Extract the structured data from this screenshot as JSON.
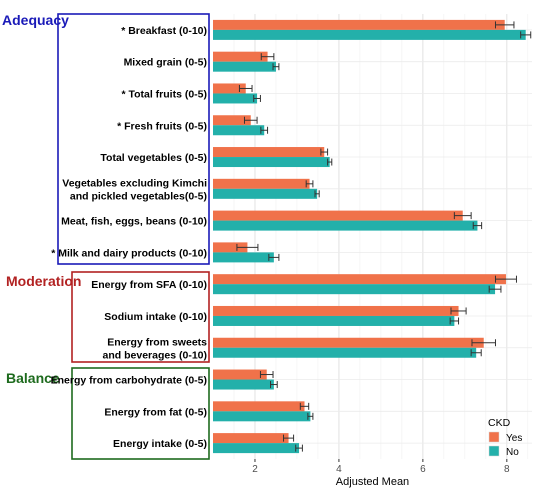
{
  "chart_data": {
    "type": "bar",
    "orientation": "horizontal",
    "xlabel": "Adjusted Mean",
    "xlim": [
      1.0,
      8.6
    ],
    "xticks": [
      2,
      4,
      6,
      8
    ],
    "grid": true,
    "legend": {
      "title": "CKD",
      "placement": "bottom-right"
    },
    "categories": [
      "* Breakfast (0-10)",
      "Mixed grain (0-5)",
      "* Total fruits (0-5)",
      "* Fresh fruits (0-5)",
      "Total vegetables (0-5)",
      [
        "Vegetables excluding Kimchi",
        "and pickled vegetables(0-5)"
      ],
      "Meat, fish, eggs, beans (0-10)",
      "* Milk and dairy products (0-10)",
      "Energy from SFA (0-10)",
      "Sodium intake (0-10)",
      [
        "Energy from sweets",
        "and beverages (0-10)"
      ],
      "Energy from carbohydrate (0-5)",
      "Energy from fat (0-5)",
      "Energy intake (0-5)"
    ],
    "series": [
      {
        "name": "Yes",
        "color": "#F0724A",
        "values": [
          7.95,
          2.3,
          1.78,
          1.9,
          3.65,
          3.3,
          6.95,
          1.82,
          7.98,
          6.85,
          7.45,
          2.28,
          3.18,
          2.8
        ],
        "errors": [
          0.22,
          0.15,
          0.15,
          0.15,
          0.08,
          0.08,
          0.2,
          0.25,
          0.25,
          0.18,
          0.28,
          0.15,
          0.1,
          0.12
        ]
      },
      {
        "name": "No",
        "color": "#23B0AA",
        "values": [
          8.45,
          2.5,
          2.05,
          2.22,
          3.78,
          3.48,
          7.3,
          2.45,
          7.72,
          6.75,
          7.27,
          2.45,
          3.32,
          3.05
        ],
        "errors": [
          0.12,
          0.07,
          0.08,
          0.08,
          0.05,
          0.05,
          0.1,
          0.12,
          0.14,
          0.1,
          0.12,
          0.08,
          0.06,
          0.08
        ]
      }
    ],
    "sections": [
      {
        "label": "Adequacy",
        "color": "#1A1AB8",
        "categories": [
          0,
          7
        ]
      },
      {
        "label": "Moderation",
        "color": "#B22222",
        "categories": [
          8,
          10
        ]
      },
      {
        "label": "Balance",
        "color": "#1E6B1E",
        "categories": [
          11,
          13
        ]
      }
    ]
  }
}
